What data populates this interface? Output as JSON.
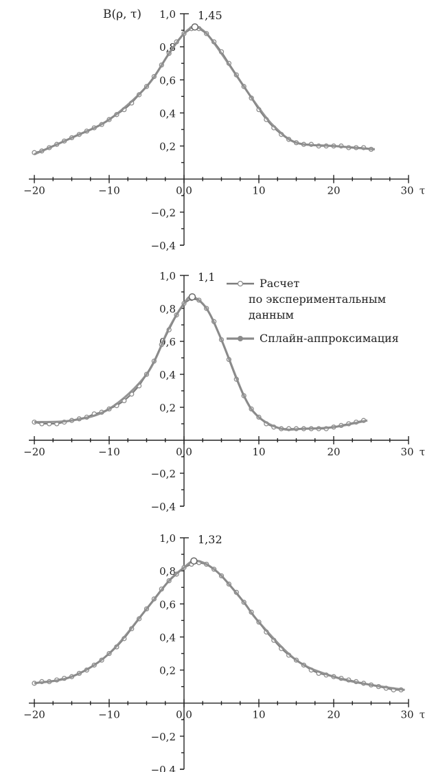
{
  "chart_data": [
    {
      "type": "line",
      "ylabel": "B(ρ, τ)",
      "xlabel": "τ",
      "annotation": "1,45",
      "peak_tau": 1.45,
      "xlim": [
        -20,
        30
      ],
      "ylim": [
        -0.4,
        1.0
      ],
      "x_ticks": [
        "−20",
        "−10",
        "0,0",
        "10",
        "20",
        "30"
      ],
      "y_ticks": [
        "1,0",
        "0,8",
        "0,6",
        "0,4",
        "0,2",
        "−0,2",
        "−0,4"
      ],
      "series": [
        {
          "x": [
            -20,
            -19,
            -18,
            -17,
            -16,
            -15,
            -14,
            -13,
            -12,
            -11,
            -10,
            -9,
            -8,
            -7,
            -6,
            -5,
            -4,
            -3,
            -2,
            -1,
            0,
            1,
            2,
            3,
            4,
            5,
            6,
            7,
            8,
            9,
            10,
            11,
            12,
            13,
            14,
            15,
            16,
            17,
            18,
            19,
            20,
            21,
            22,
            23,
            24,
            25
          ],
          "y": [
            0.16,
            0.17,
            0.19,
            0.21,
            0.23,
            0.25,
            0.27,
            0.29,
            0.31,
            0.33,
            0.36,
            0.39,
            0.42,
            0.46,
            0.51,
            0.56,
            0.62,
            0.69,
            0.76,
            0.83,
            0.88,
            0.91,
            0.91,
            0.88,
            0.83,
            0.77,
            0.7,
            0.63,
            0.56,
            0.49,
            0.42,
            0.36,
            0.31,
            0.27,
            0.24,
            0.22,
            0.21,
            0.21,
            0.2,
            0.2,
            0.2,
            0.2,
            0.19,
            0.19,
            0.19,
            0.18
          ]
        },
        {
          "x": [
            -20,
            -15,
            -10,
            -5,
            -2,
            0,
            1.45,
            3,
            5,
            8,
            10,
            12,
            15,
            20,
            25.5
          ],
          "y": [
            0.15,
            0.25,
            0.36,
            0.56,
            0.76,
            0.88,
            0.92,
            0.88,
            0.76,
            0.56,
            0.43,
            0.32,
            0.22,
            0.2,
            0.18
          ]
        }
      ]
    },
    {
      "type": "line",
      "ylabel": "",
      "xlabel": "τ",
      "annotation": "1,1",
      "peak_tau": 1.1,
      "xlim": [
        -20,
        30
      ],
      "ylim": [
        -0.4,
        1.0
      ],
      "x_ticks": [
        "−20",
        "−10",
        "0,0",
        "10",
        "20",
        "30"
      ],
      "y_ticks": [
        "1,0",
        "0,8",
        "0,6",
        "0,4",
        "0,2",
        "−0,2",
        "−0,4"
      ],
      "series": [
        {
          "name": "Расчет по экспериментальным данным",
          "x": [
            -20,
            -19,
            -18,
            -17,
            -16,
            -15,
            -14,
            -13,
            -12,
            -11,
            -10,
            -9,
            -8,
            -7,
            -6,
            -5,
            -4,
            -3,
            -2,
            -1,
            0,
            1,
            2,
            3,
            4,
            5,
            6,
            7,
            8,
            9,
            10,
            11,
            12,
            13,
            14,
            15,
            16,
            17,
            18,
            19,
            20,
            21,
            22,
            23,
            24
          ],
          "y": [
            0.11,
            0.1,
            0.1,
            0.1,
            0.11,
            0.12,
            0.13,
            0.14,
            0.16,
            0.17,
            0.19,
            0.21,
            0.24,
            0.28,
            0.33,
            0.4,
            0.48,
            0.58,
            0.67,
            0.76,
            0.83,
            0.86,
            0.85,
            0.8,
            0.72,
            0.61,
            0.49,
            0.37,
            0.27,
            0.19,
            0.14,
            0.1,
            0.08,
            0.07,
            0.07,
            0.07,
            0.07,
            0.07,
            0.07,
            0.07,
            0.08,
            0.09,
            0.1,
            0.11,
            0.12
          ]
        },
        {
          "name": "Сплайн-аппроксимация",
          "x": [
            -20,
            -15,
            -10,
            -5,
            -2,
            0,
            1.1,
            3,
            5,
            8,
            10,
            13,
            16,
            20,
            24.5
          ],
          "y": [
            0.11,
            0.12,
            0.19,
            0.4,
            0.68,
            0.83,
            0.87,
            0.8,
            0.61,
            0.27,
            0.14,
            0.07,
            0.07,
            0.08,
            0.12
          ]
        }
      ]
    },
    {
      "type": "line",
      "ylabel": "",
      "xlabel": "τ",
      "annotation": "1,32",
      "peak_tau": 1.32,
      "xlim": [
        -20,
        30
      ],
      "ylim": [
        -0.4,
        1.0
      ],
      "x_ticks": [
        "−20",
        "−10",
        "0,0",
        "10",
        "20",
        "30"
      ],
      "y_ticks": [
        "1,0",
        "0,8",
        "0,6",
        "0,4",
        "0,2",
        "−0,2",
        "−0,4"
      ],
      "series": [
        {
          "x": [
            -20,
            -19,
            -18,
            -17,
            -16,
            -15,
            -14,
            -13,
            -12,
            -11,
            -10,
            -9,
            -8,
            -7,
            -6,
            -5,
            -4,
            -3,
            -2,
            -1,
            0,
            1,
            2,
            3,
            4,
            5,
            6,
            7,
            8,
            9,
            10,
            11,
            12,
            13,
            14,
            15,
            16,
            17,
            18,
            19,
            20,
            21,
            22,
            23,
            24,
            25,
            26,
            27,
            28,
            29
          ],
          "y": [
            0.12,
            0.13,
            0.13,
            0.14,
            0.15,
            0.16,
            0.18,
            0.2,
            0.23,
            0.26,
            0.3,
            0.34,
            0.39,
            0.45,
            0.51,
            0.57,
            0.63,
            0.69,
            0.74,
            0.78,
            0.82,
            0.84,
            0.85,
            0.84,
            0.81,
            0.77,
            0.72,
            0.67,
            0.61,
            0.55,
            0.49,
            0.43,
            0.38,
            0.33,
            0.29,
            0.26,
            0.23,
            0.2,
            0.18,
            0.17,
            0.16,
            0.15,
            0.14,
            0.13,
            0.12,
            0.11,
            0.1,
            0.09,
            0.08,
            0.08
          ]
        },
        {
          "x": [
            -20,
            -15,
            -10,
            -5,
            -2,
            0,
            1.32,
            3,
            5,
            8,
            10,
            15,
            20,
            25,
            29.5
          ],
          "y": [
            0.12,
            0.16,
            0.3,
            0.57,
            0.74,
            0.82,
            0.86,
            0.84,
            0.77,
            0.61,
            0.49,
            0.26,
            0.16,
            0.11,
            0.08
          ]
        }
      ]
    }
  ]
}
